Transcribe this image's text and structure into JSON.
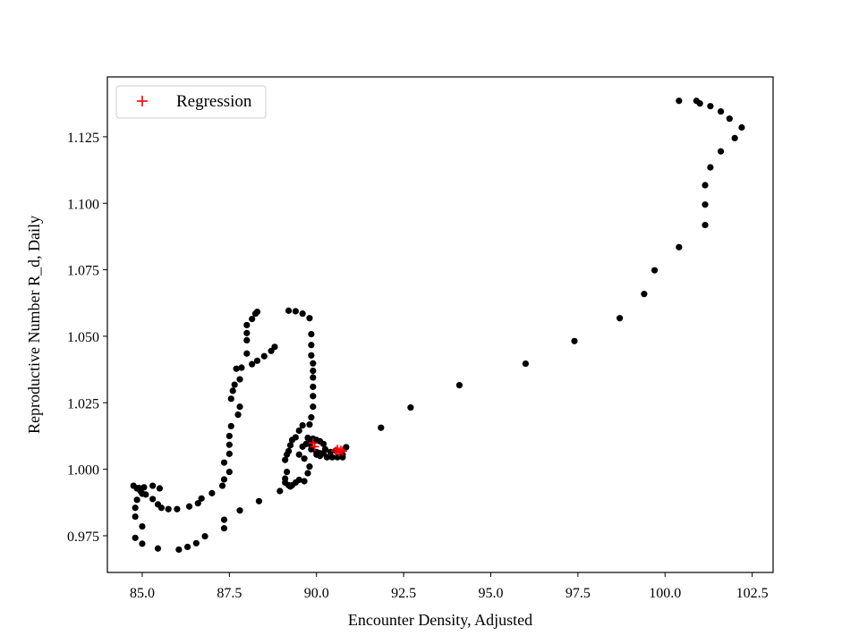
{
  "chart_data": {
    "type": "scatter",
    "title": "",
    "xlabel": "Encounter Density, Adjusted",
    "ylabel": "Reproductive Number R_d, Daily",
    "xlim": [
      84.0,
      103.1
    ],
    "ylim": [
      0.9612,
      1.1475
    ],
    "xticks": [
      85.0,
      87.5,
      90.0,
      92.5,
      95.0,
      97.5,
      100.0,
      102.5
    ],
    "xtick_labels": [
      "85.0",
      "87.5",
      "90.0",
      "92.5",
      "95.0",
      "97.5",
      "100.0",
      "102.5"
    ],
    "yticks": [
      0.975,
      1.0,
      1.025,
      1.05,
      1.075,
      1.1,
      1.125
    ],
    "ytick_labels": [
      "0.975",
      "1.000",
      "1.025",
      "1.050",
      "1.075",
      "1.100",
      "1.125"
    ],
    "grid": false,
    "legend": {
      "position": "top-left",
      "entries": [
        "Regression"
      ]
    },
    "colors": {
      "points": "#000000",
      "regression": "#ff0000"
    },
    "series": [
      {
        "marker": "circle",
        "color": "#000000",
        "points": [
          [
            100.4,
            1.1385
          ],
          [
            100.9,
            1.1385
          ],
          [
            101.0,
            1.1375
          ],
          [
            101.3,
            1.1365
          ],
          [
            101.6,
            1.1345
          ],
          [
            101.85,
            1.1318
          ],
          [
            102.2,
            1.1285
          ],
          [
            102.0,
            1.1245
          ],
          [
            101.6,
            1.1195
          ],
          [
            101.3,
            1.1135
          ],
          [
            101.15,
            1.1068
          ],
          [
            101.15,
            1.0995
          ],
          [
            101.15,
            1.0918
          ],
          [
            100.4,
            1.0835
          ],
          [
            99.7,
            1.0748
          ],
          [
            99.4,
            1.0659
          ],
          [
            98.7,
            1.0568
          ],
          [
            97.4,
            1.0482
          ],
          [
            96.0,
            1.0397
          ],
          [
            94.1,
            1.0316
          ],
          [
            92.7,
            1.0232
          ],
          [
            91.85,
            1.0156
          ],
          [
            90.85,
            1.0083
          ],
          [
            89.2,
            1.0596
          ],
          [
            89.4,
            1.0594
          ],
          [
            89.6,
            1.0585
          ],
          [
            89.8,
            1.0568
          ],
          [
            89.85,
            1.0508
          ],
          [
            89.85,
            1.0467
          ],
          [
            89.85,
            1.0428
          ],
          [
            89.9,
            1.0398
          ],
          [
            89.9,
            1.037
          ],
          [
            89.9,
            1.0345
          ],
          [
            89.9,
            1.031
          ],
          [
            89.9,
            1.0275
          ],
          [
            89.9,
            1.0235
          ],
          [
            89.85,
            1.0195
          ],
          [
            89.8,
            1.0168
          ],
          [
            89.6,
            1.0165
          ],
          [
            89.5,
            1.0145
          ],
          [
            89.4,
            1.012
          ],
          [
            89.3,
            1.011
          ],
          [
            89.25,
            1.009
          ],
          [
            89.2,
            1.0068
          ],
          [
            89.15,
            1.0055
          ],
          [
            89.1,
            1.0035
          ],
          [
            89.15,
            0.999
          ],
          [
            89.1,
            0.9965
          ],
          [
            89.1,
            0.995
          ],
          [
            89.2,
            0.994
          ],
          [
            89.25,
            0.9935
          ],
          [
            89.3,
            0.994
          ],
          [
            89.4,
            0.995
          ],
          [
            89.5,
            0.996
          ],
          [
            89.65,
            0.9955
          ],
          [
            89.75,
            0.9985
          ],
          [
            89.8,
            1.001
          ],
          [
            89.65,
            1.004
          ],
          [
            89.5,
            1.0055
          ],
          [
            89.6,
            1.0085
          ],
          [
            89.7,
            1.0095
          ],
          [
            89.8,
            1.0105
          ],
          [
            89.9,
            1.0115
          ],
          [
            90.0,
            1.011
          ],
          [
            90.1,
            1.0105
          ],
          [
            90.2,
            1.0095
          ],
          [
            90.25,
            1.0075
          ],
          [
            90.1,
            1.006
          ],
          [
            90.0,
            1.0055
          ],
          [
            90.1,
            1.005
          ],
          [
            90.3,
            1.0045
          ],
          [
            90.45,
            1.0045
          ],
          [
            90.6,
            1.0045
          ],
          [
            90.75,
            1.0045
          ],
          [
            90.75,
            1.0055
          ],
          [
            90.55,
            1.007
          ],
          [
            90.4,
            1.0065
          ],
          [
            90.2,
            1.006
          ],
          [
            90.0,
            1.0065
          ],
          [
            89.85,
            1.0075
          ],
          [
            89.8,
            1.0095
          ],
          [
            89.75,
            1.0118
          ],
          [
            88.8,
            1.046
          ],
          [
            88.7,
            1.0445
          ],
          [
            88.5,
            1.0425
          ],
          [
            88.3,
            1.0408
          ],
          [
            88.15,
            1.0395
          ],
          [
            87.85,
            1.0382
          ],
          [
            87.7,
            1.0378
          ],
          [
            87.8,
            1.0338
          ],
          [
            87.65,
            1.0318
          ],
          [
            87.6,
            1.0295
          ],
          [
            87.55,
            1.0265
          ],
          [
            87.8,
            1.0235
          ],
          [
            87.75,
            1.0205
          ],
          [
            87.55,
            1.0162
          ],
          [
            87.5,
            1.0125
          ],
          [
            87.5,
            1.0092
          ],
          [
            87.5,
            1.0058
          ],
          [
            87.35,
            1.0025
          ],
          [
            87.5,
            0.999
          ],
          [
            87.35,
            0.9962
          ],
          [
            87.3,
            0.9938
          ],
          [
            87.0,
            0.991
          ],
          [
            86.7,
            0.989
          ],
          [
            86.6,
            0.9872
          ],
          [
            86.35,
            0.986
          ],
          [
            86.0,
            0.985
          ],
          [
            85.75,
            0.985
          ],
          [
            85.55,
            0.9855
          ],
          [
            85.45,
            0.9868
          ],
          [
            85.3,
            0.9888
          ],
          [
            85.5,
            0.9928
          ],
          [
            85.3,
            0.9938
          ],
          [
            85.05,
            0.9932
          ],
          [
            84.95,
            0.9918
          ],
          [
            84.85,
            0.9928
          ],
          [
            84.75,
            0.9938
          ],
          [
            84.9,
            0.993
          ],
          [
            85.0,
            0.9908
          ],
          [
            85.1,
            0.9905
          ],
          [
            84.85,
            0.9885
          ],
          [
            84.8,
            0.9855
          ],
          [
            84.8,
            0.9822
          ],
          [
            85.0,
            0.9785
          ],
          [
            84.8,
            0.9742
          ],
          [
            85.0,
            0.972
          ],
          [
            85.45,
            0.9702
          ],
          [
            86.05,
            0.9698
          ],
          [
            86.3,
            0.9708
          ],
          [
            86.55,
            0.9722
          ],
          [
            86.8,
            0.9748
          ],
          [
            87.35,
            0.9778
          ],
          [
            87.35,
            0.981
          ],
          [
            87.8,
            0.9845
          ],
          [
            88.35,
            0.988
          ],
          [
            88.95,
            0.9918
          ],
          [
            88.0,
            1.0435
          ],
          [
            88.0,
            1.0485
          ],
          [
            88.0,
            1.0512
          ],
          [
            88.0,
            1.0542
          ],
          [
            88.15,
            1.0565
          ],
          [
            88.25,
            1.0585
          ],
          [
            88.3,
            1.0592
          ]
        ]
      },
      {
        "name": "Regression",
        "marker": "plus",
        "color": "#ff0000",
        "points": [
          [
            89.9,
            1.0098
          ],
          [
            89.95,
            1.0085
          ],
          [
            90.55,
            1.0068
          ],
          [
            90.6,
            1.0075
          ],
          [
            90.65,
            1.0065
          ],
          [
            90.7,
            1.0072
          ],
          [
            90.75,
            1.0068
          ]
        ]
      }
    ]
  }
}
